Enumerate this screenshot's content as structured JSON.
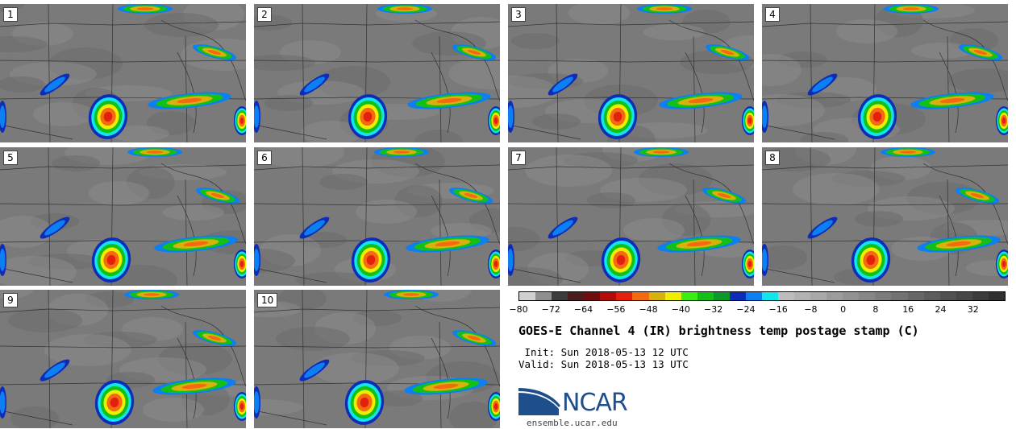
{
  "panels": [
    {
      "label": "1"
    },
    {
      "label": "2"
    },
    {
      "label": "3"
    },
    {
      "label": "4"
    },
    {
      "label": "5"
    },
    {
      "label": "6"
    },
    {
      "label": "7"
    },
    {
      "label": "8"
    },
    {
      "label": "9"
    },
    {
      "label": "10"
    }
  ],
  "colorbar": {
    "colors": [
      "#d0d0d0",
      "#8e8e8e",
      "#3c3c3c",
      "#4a1d1d",
      "#6e0d0d",
      "#b30a0a",
      "#e3200e",
      "#f56a10",
      "#d7b20c",
      "#eeee00",
      "#3aee14",
      "#12c018",
      "#0b9a2a",
      "#0d2cb8",
      "#0c7ff2",
      "#10e6ec",
      "#bdbdbd",
      "#b2b2b2",
      "#a8a8a8",
      "#9c9c9c",
      "#929292",
      "#878787",
      "#7c7c7c",
      "#727272",
      "#676767",
      "#5c5c5c",
      "#515151",
      "#474747",
      "#3c3c3c",
      "#303030"
    ],
    "ticks": [
      "−80",
      "−72",
      "−64",
      "−56",
      "−48",
      "−40",
      "−32",
      "−24",
      "−16",
      "−8",
      "0",
      "8",
      "16",
      "24",
      "32"
    ],
    "tick_values": [
      -80,
      -72,
      -64,
      -56,
      -48,
      -40,
      -32,
      -24,
      -16,
      -8,
      0,
      8,
      16,
      24,
      32
    ],
    "range": [
      -80,
      40
    ]
  },
  "title": "GOES-E Channel 4 (IR) brightness temp postage stamp (C)",
  "init": " Init: Sun 2018-05-13 12 UTC",
  "valid": "Valid: Sun 2018-05-13 13 UTC",
  "logo": {
    "text": "NCAR",
    "brand_color": "#1f4e8c"
  },
  "site": "ensemble.ucar.edu"
}
